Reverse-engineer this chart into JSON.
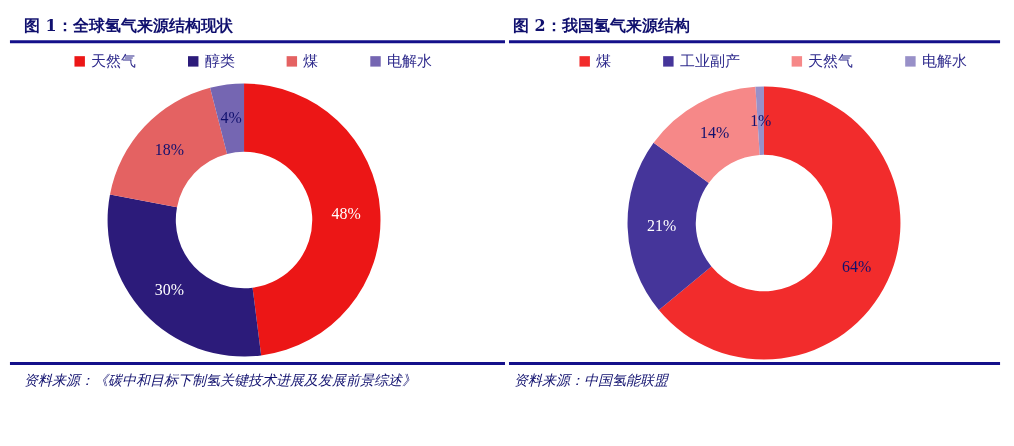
{
  "chart_data": [
    {
      "type": "donut",
      "title": "图 1：全球氢气来源结构现状",
      "categories": [
        "天然气",
        "醇类",
        "煤",
        "电解水"
      ],
      "values": [
        48,
        30,
        18,
        4
      ],
      "colors": [
        "#ec1616",
        "#2c1b7a",
        "#e46262",
        "#7566b2"
      ],
      "value_labels": [
        "48%",
        "30%",
        "18%",
        "4%"
      ],
      "legend": "top",
      "annotations": [
        "资料来源：《碳中和目标下制氢关键技术进展及发展前景综述》"
      ]
    },
    {
      "type": "donut",
      "title": "图 2：我国氢气来源结构",
      "categories": [
        "煤",
        "工业副产",
        "天然气",
        "电解水"
      ],
      "values": [
        64,
        21,
        14,
        1
      ],
      "colors": [
        "#f22c2c",
        "#45359a",
        "#f68888",
        "#9890c8"
      ],
      "value_labels": [
        "64%",
        "21%",
        "14%",
        "1%"
      ],
      "legend": "top",
      "annotations": [
        "资料来源：中国氢能联盟"
      ]
    }
  ]
}
